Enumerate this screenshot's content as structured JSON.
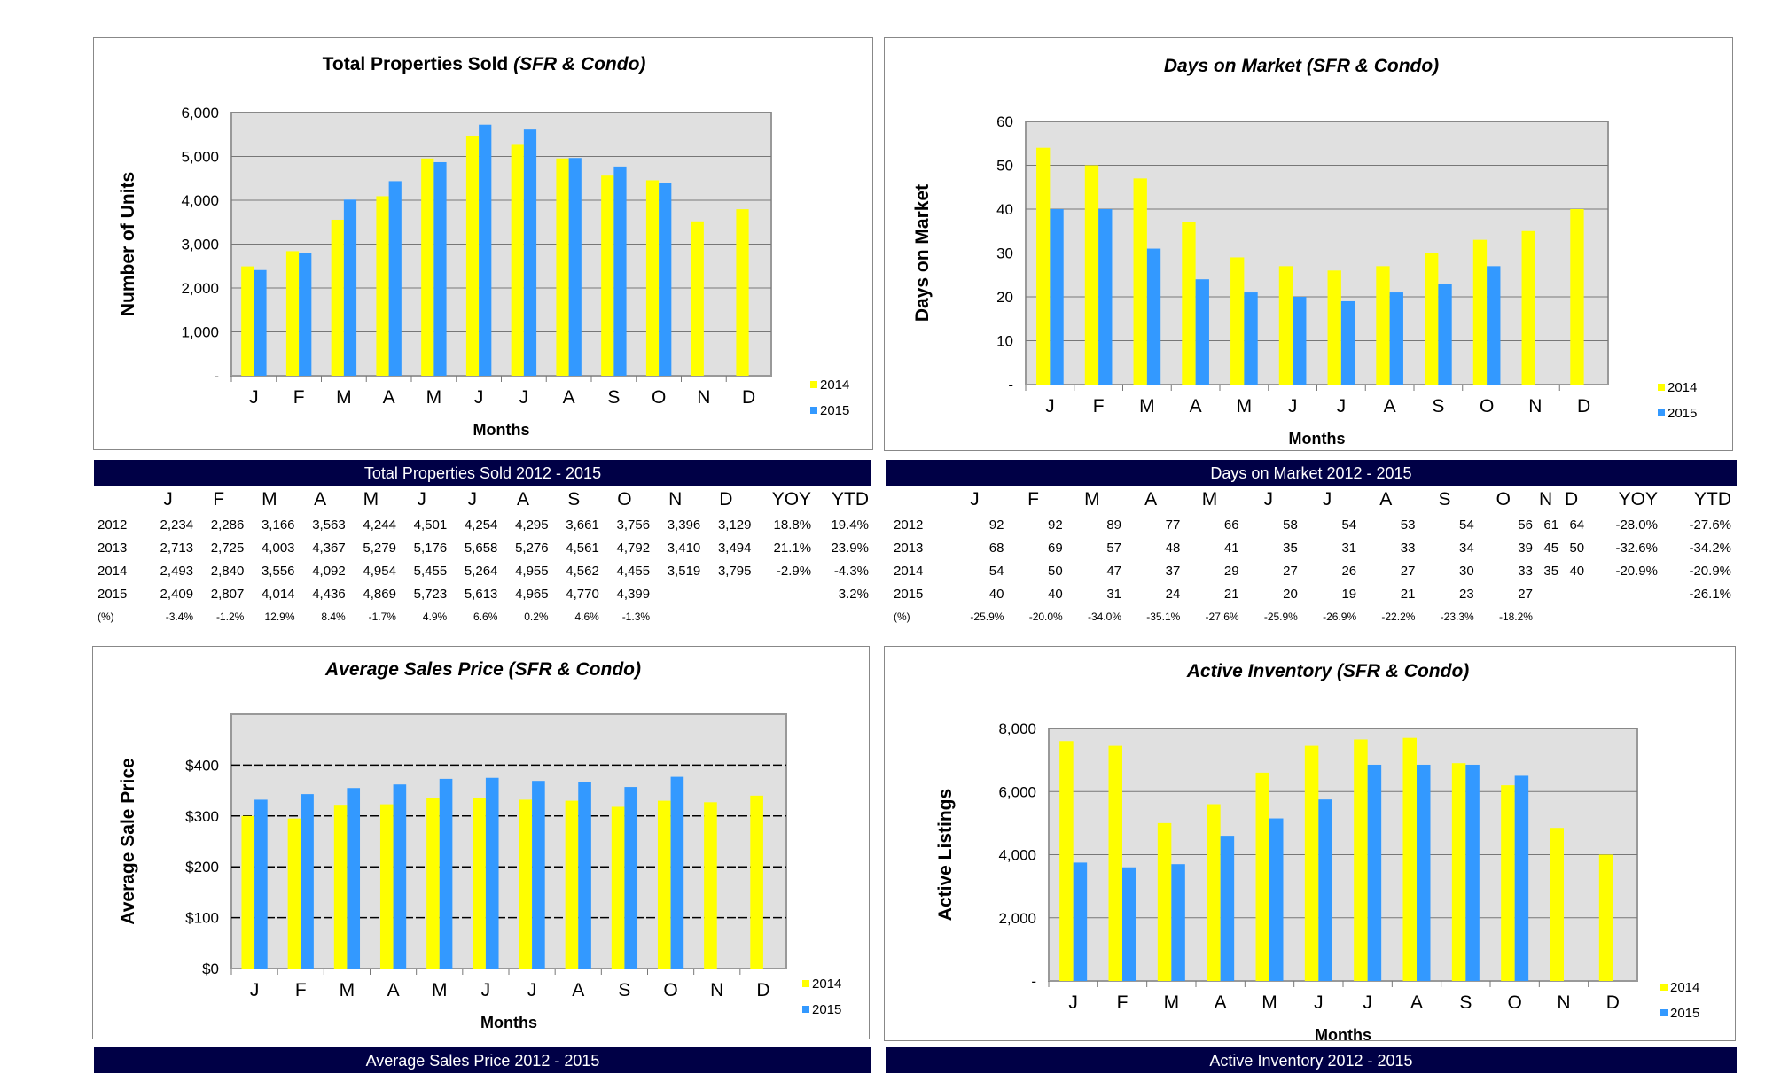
{
  "chart_data": [
    {
      "id": "sold",
      "type": "bar",
      "title": "Total Properties Sold",
      "title_suffix": "(SFR & Condo)",
      "title_italic": false,
      "xlabel": "Months",
      "ylabel": "Number of Units",
      "categories": [
        "J",
        "F",
        "M",
        "A",
        "M",
        "J",
        "J",
        "A",
        "S",
        "O",
        "N",
        "D"
      ],
      "ylim": [
        0,
        6000
      ],
      "yticks": [
        0,
        1000,
        2000,
        3000,
        4000,
        5000,
        6000
      ],
      "ytick_labels": [
        "-",
        "1,000",
        "2,000",
        "3,000",
        "4,000",
        "5,000",
        "6,000"
      ],
      "grid": "solid",
      "series": [
        {
          "name": "2014",
          "color": "#ffff00",
          "values": [
            2493,
            2840,
            3556,
            4092,
            4954,
            5455,
            5264,
            4955,
            4562,
            4455,
            3519,
            3795
          ]
        },
        {
          "name": "2015",
          "color": "#3399ff",
          "values": [
            2409,
            2807,
            4014,
            4436,
            4869,
            5723,
            5613,
            4965,
            4770,
            4399,
            null,
            null
          ]
        }
      ],
      "legend": "right"
    },
    {
      "id": "dom",
      "type": "bar",
      "title": "Days on Market",
      "title_suffix": "(SFR & Condo)",
      "title_italic": true,
      "xlabel": "Months",
      "ylabel": "Days on Market",
      "categories": [
        "J",
        "F",
        "M",
        "A",
        "M",
        "J",
        "J",
        "A",
        "S",
        "O",
        "N",
        "D"
      ],
      "ylim": [
        0,
        60
      ],
      "yticks": [
        0,
        10,
        20,
        30,
        40,
        50,
        60
      ],
      "ytick_labels": [
        "-",
        "10",
        "20",
        "30",
        "40",
        "50",
        "60"
      ],
      "grid": "solid",
      "series": [
        {
          "name": "2014",
          "color": "#ffff00",
          "values": [
            54,
            50,
            47,
            37,
            29,
            27,
            26,
            27,
            30,
            33,
            35,
            40
          ]
        },
        {
          "name": "2015",
          "color": "#3399ff",
          "values": [
            40,
            40,
            31,
            24,
            21,
            20,
            19,
            21,
            23,
            27,
            null,
            null
          ]
        }
      ],
      "legend": "right"
    },
    {
      "id": "price",
      "type": "bar",
      "title": "Average Sales Price",
      "title_suffix": "(SFR & Condo)",
      "title_italic": true,
      "xlabel": "Months",
      "ylabel": "Average Sale Price",
      "categories": [
        "J",
        "F",
        "M",
        "A",
        "M",
        "J",
        "J",
        "A",
        "S",
        "O",
        "N",
        "D"
      ],
      "ylim": [
        0,
        500
      ],
      "yticks": [
        0,
        100,
        200,
        300,
        400
      ],
      "ytick_labels": [
        "$0",
        "$100",
        "$200",
        "$300",
        "$400"
      ],
      "grid": "dashed",
      "series": [
        {
          "name": "2014",
          "color": "#ffff00",
          "values": [
            300,
            295,
            322,
            323,
            335,
            335,
            332,
            330,
            318,
            330,
            327,
            340
          ]
        },
        {
          "name": "2015",
          "color": "#3399ff",
          "values": [
            332,
            343,
            355,
            362,
            373,
            375,
            369,
            367,
            357,
            377,
            null,
            null
          ]
        }
      ],
      "legend": "right"
    },
    {
      "id": "inv",
      "type": "bar",
      "title": "Active Inventory",
      "title_suffix": "(SFR & Condo)",
      "title_italic": true,
      "xlabel": "Months",
      "ylabel": "Active Listings",
      "categories": [
        "J",
        "F",
        "M",
        "A",
        "M",
        "J",
        "J",
        "A",
        "S",
        "O",
        "N",
        "D"
      ],
      "ylim": [
        0,
        8000
      ],
      "yticks": [
        0,
        2000,
        4000,
        6000,
        8000
      ],
      "ytick_labels": [
        "-",
        "2,000",
        "4,000",
        "6,000",
        "8,000"
      ],
      "grid": "solid",
      "series": [
        {
          "name": "2014",
          "color": "#ffff00",
          "values": [
            7600,
            7450,
            5000,
            5600,
            6600,
            7450,
            7650,
            7700,
            6900,
            6200,
            4850,
            4000
          ]
        },
        {
          "name": "2015",
          "color": "#3399ff",
          "values": [
            3750,
            3600,
            3700,
            4600,
            5150,
            5750,
            6850,
            6850,
            6850,
            6500,
            null,
            null
          ]
        }
      ],
      "legend": "right"
    }
  ],
  "tables": {
    "sold": {
      "title": "Total Properties Sold    2012 - 2015",
      "header": [
        "",
        "J",
        "F",
        "M",
        "A",
        "M",
        "J",
        "J",
        "A",
        "S",
        "O",
        "N",
        "D",
        "YOY",
        "YTD"
      ],
      "rows": [
        [
          "2012",
          "2,234",
          "2,286",
          "3,166",
          "3,563",
          "4,244",
          "4,501",
          "4,254",
          "4,295",
          "3,661",
          "3,756",
          "3,396",
          "3,129",
          "18.8%",
          "19.4%"
        ],
        [
          "2013",
          "2,713",
          "2,725",
          "4,003",
          "4,367",
          "5,279",
          "5,176",
          "5,658",
          "5,276",
          "4,561",
          "4,792",
          "3,410",
          "3,494",
          "21.1%",
          "23.9%"
        ],
        [
          "2014",
          "2,493",
          "2,840",
          "3,556",
          "4,092",
          "4,954",
          "5,455",
          "5,264",
          "4,955",
          "4,562",
          "4,455",
          "3,519",
          "3,795",
          "-2.9%",
          "-4.3%"
        ],
        [
          "2015",
          "2,409",
          "2,807",
          "4,014",
          "4,436",
          "4,869",
          "5,723",
          "5,613",
          "4,965",
          "4,770",
          "4,399",
          "",
          "",
          "",
          "3.2%"
        ],
        [
          "(%)",
          "-3.4%",
          "-1.2%",
          "12.9%",
          "8.4%",
          "-1.7%",
          "4.9%",
          "6.6%",
          "0.2%",
          "4.6%",
          "-1.3%",
          "",
          "",
          "",
          ""
        ]
      ]
    },
    "dom": {
      "title": "Days on Market   2012 - 2015",
      "header": [
        "",
        "J",
        "F",
        "M",
        "A",
        "M",
        "J",
        "J",
        "A",
        "S",
        "O",
        "N",
        "D",
        "YOY",
        "YTD"
      ],
      "rows": [
        [
          "2012",
          "92",
          "92",
          "89",
          "77",
          "66",
          "58",
          "54",
          "53",
          "54",
          "56",
          "61",
          "64",
          "-28.0%",
          "-27.6%"
        ],
        [
          "2013",
          "68",
          "69",
          "57",
          "48",
          "41",
          "35",
          "31",
          "33",
          "34",
          "39",
          "45",
          "50",
          "-32.6%",
          "-34.2%"
        ],
        [
          "2014",
          "54",
          "50",
          "47",
          "37",
          "29",
          "27",
          "26",
          "27",
          "30",
          "33",
          "35",
          "40",
          "-20.9%",
          "-20.9%"
        ],
        [
          "2015",
          "40",
          "40",
          "31",
          "24",
          "21",
          "20",
          "19",
          "21",
          "23",
          "27",
          "",
          "",
          "",
          "-26.1%"
        ],
        [
          "(%)",
          "-25.9%",
          "-20.0%",
          "-34.0%",
          "-35.1%",
          "-27.6%",
          "-25.9%",
          "-26.9%",
          "-22.2%",
          "-23.3%",
          "-18.2%",
          "",
          "",
          "",
          ""
        ]
      ]
    },
    "price_title": "Average Sales Price   2012 - 2015",
    "inv_title": "Active Inventory   2012 - 2015"
  }
}
